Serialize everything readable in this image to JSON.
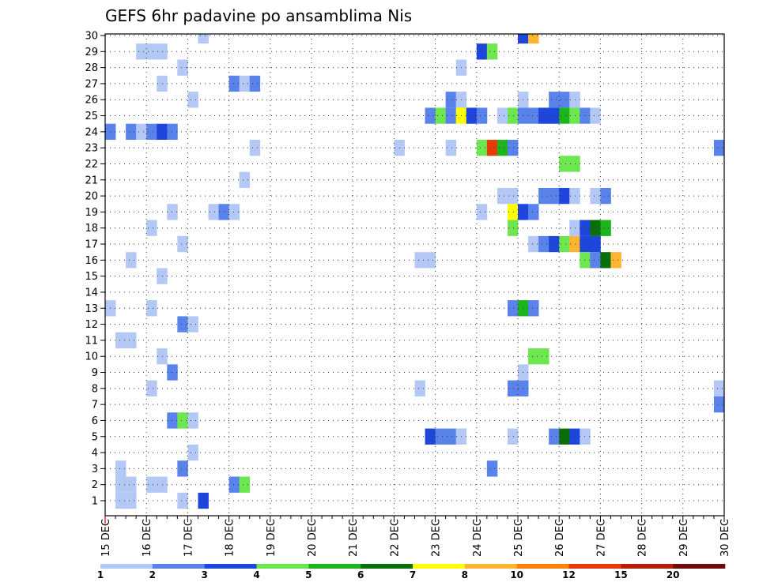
{
  "chart_data": {
    "type": "heatmap",
    "title": "GEFS 6hr padavine po ansamblima Nis",
    "xlabel": "",
    "ylabel": "",
    "x_tick_labels": [
      "15 DEC",
      "16 DEC",
      "17 DEC",
      "18 DEC",
      "19 DEC",
      "20 DEC",
      "21 DEC",
      "22 DEC",
      "23 DEC",
      "24 DEC",
      "25 DEC",
      "26 DEC",
      "27 DEC",
      "28 DEC",
      "29 DEC",
      "30 DEC"
    ],
    "y_tick_labels": [
      "1",
      "2",
      "3",
      "4",
      "5",
      "6",
      "7",
      "8",
      "9",
      "10",
      "11",
      "12",
      "13",
      "14",
      "15",
      "16",
      "17",
      "18",
      "19",
      "20",
      "21",
      "22",
      "23",
      "24",
      "25",
      "26",
      "27",
      "28",
      "29",
      "30"
    ],
    "y_range": [
      1,
      30
    ],
    "time_steps_per_day": 4,
    "grid": true,
    "colorbar": {
      "labels": [
        "1",
        "2",
        "3",
        "4",
        "5",
        "6",
        "7",
        "8",
        "10",
        "12",
        "15",
        "20"
      ],
      "colors": [
        "#b4c8f5",
        "#5a82eb",
        "#1e46dc",
        "#6ee650",
        "#1eb41e",
        "#0a6e0a",
        "#ffff00",
        "#ffb432",
        "#ff820a",
        "#e63c0a",
        "#b41e0a",
        "#6e0a0a"
      ]
    },
    "cells": [
      {
        "member": 30,
        "step": 10,
        "level": 1
      },
      {
        "member": 30,
        "step": 41,
        "level": 3
      },
      {
        "member": 30,
        "step": 42,
        "level": 8
      },
      {
        "member": 29,
        "step": 4,
        "level": 1
      },
      {
        "member": 29,
        "step": 5,
        "level": 1
      },
      {
        "member": 29,
        "step": 6,
        "level": 1
      },
      {
        "member": 29,
        "step": 37,
        "level": 3
      },
      {
        "member": 29,
        "step": 38,
        "level": 4
      },
      {
        "member": 28,
        "step": 8,
        "level": 1
      },
      {
        "member": 28,
        "step": 35,
        "level": 1
      },
      {
        "member": 27,
        "step": 6,
        "level": 1
      },
      {
        "member": 27,
        "step": 13,
        "level": 2
      },
      {
        "member": 27,
        "step": 14,
        "level": 1
      },
      {
        "member": 27,
        "step": 15,
        "level": 2
      },
      {
        "member": 26,
        "step": 9,
        "level": 1
      },
      {
        "member": 26,
        "step": 34,
        "level": 2
      },
      {
        "member": 26,
        "step": 35,
        "level": 1
      },
      {
        "member": 26,
        "step": 41,
        "level": 1
      },
      {
        "member": 26,
        "step": 44,
        "level": 2
      },
      {
        "member": 26,
        "step": 45,
        "level": 2
      },
      {
        "member": 26,
        "step": 46,
        "level": 1
      },
      {
        "member": 25,
        "step": 32,
        "level": 2
      },
      {
        "member": 25,
        "step": 33,
        "level": 4
      },
      {
        "member": 25,
        "step": 34,
        "level": 2
      },
      {
        "member": 25,
        "step": 35,
        "level": 7
      },
      {
        "member": 25,
        "step": 36,
        "level": 3
      },
      {
        "member": 25,
        "step": 37,
        "level": 2
      },
      {
        "member": 25,
        "step": 39,
        "level": 1
      },
      {
        "member": 25,
        "step": 40,
        "level": 4
      },
      {
        "member": 25,
        "step": 41,
        "level": 2
      },
      {
        "member": 25,
        "step": 42,
        "level": 2
      },
      {
        "member": 25,
        "step": 43,
        "level": 3
      },
      {
        "member": 25,
        "step": 44,
        "level": 3
      },
      {
        "member": 25,
        "step": 45,
        "level": 5
      },
      {
        "member": 25,
        "step": 46,
        "level": 4
      },
      {
        "member": 25,
        "step": 47,
        "level": 2
      },
      {
        "member": 25,
        "step": 48,
        "level": 1
      },
      {
        "member": 24,
        "step": 1,
        "level": 2
      },
      {
        "member": 24,
        "step": 3,
        "level": 2
      },
      {
        "member": 24,
        "step": 4,
        "level": 1
      },
      {
        "member": 24,
        "step": 5,
        "level": 2
      },
      {
        "member": 24,
        "step": 6,
        "level": 3
      },
      {
        "member": 24,
        "step": 7,
        "level": 2
      },
      {
        "member": 23,
        "step": 15,
        "level": 1
      },
      {
        "member": 23,
        "step": 29,
        "level": 1
      },
      {
        "member": 23,
        "step": 34,
        "level": 1
      },
      {
        "member": 23,
        "step": 37,
        "level": 4
      },
      {
        "member": 23,
        "step": 38,
        "level": 10
      },
      {
        "member": 23,
        "step": 39,
        "level": 5
      },
      {
        "member": 23,
        "step": 40,
        "level": 2
      },
      {
        "member": 23,
        "step": 60,
        "level": 2
      },
      {
        "member": 22,
        "step": 45,
        "level": 4
      },
      {
        "member": 22,
        "step": 46,
        "level": 4
      },
      {
        "member": 21,
        "step": 14,
        "level": 1
      },
      {
        "member": 20,
        "step": 39,
        "level": 1
      },
      {
        "member": 20,
        "step": 40,
        "level": 1
      },
      {
        "member": 20,
        "step": 43,
        "level": 2
      },
      {
        "member": 20,
        "step": 44,
        "level": 2
      },
      {
        "member": 20,
        "step": 45,
        "level": 3
      },
      {
        "member": 20,
        "step": 46,
        "level": 1
      },
      {
        "member": 20,
        "step": 48,
        "level": 1
      },
      {
        "member": 20,
        "step": 49,
        "level": 2
      },
      {
        "member": 19,
        "step": 7,
        "level": 1
      },
      {
        "member": 19,
        "step": 11,
        "level": 1
      },
      {
        "member": 19,
        "step": 12,
        "level": 2
      },
      {
        "member": 19,
        "step": 13,
        "level": 1
      },
      {
        "member": 19,
        "step": 37,
        "level": 1
      },
      {
        "member": 19,
        "step": 40,
        "level": 7
      },
      {
        "member": 19,
        "step": 41,
        "level": 3
      },
      {
        "member": 19,
        "step": 42,
        "level": 2
      },
      {
        "member": 18,
        "step": 5,
        "level": 1
      },
      {
        "member": 18,
        "step": 40,
        "level": 4
      },
      {
        "member": 18,
        "step": 46,
        "level": 1
      },
      {
        "member": 18,
        "step": 47,
        "level": 3
      },
      {
        "member": 18,
        "step": 48,
        "level": 6
      },
      {
        "member": 18,
        "step": 49,
        "level": 5
      },
      {
        "member": 17,
        "step": 8,
        "level": 1
      },
      {
        "member": 17,
        "step": 42,
        "level": 1
      },
      {
        "member": 17,
        "step": 43,
        "level": 2
      },
      {
        "member": 17,
        "step": 44,
        "level": 3
      },
      {
        "member": 17,
        "step": 45,
        "level": 4
      },
      {
        "member": 17,
        "step": 46,
        "level": 8
      },
      {
        "member": 17,
        "step": 47,
        "level": 3
      },
      {
        "member": 17,
        "step": 48,
        "level": 3
      },
      {
        "member": 16,
        "step": 3,
        "level": 1
      },
      {
        "member": 16,
        "step": 31,
        "level": 1
      },
      {
        "member": 16,
        "step": 32,
        "level": 1
      },
      {
        "member": 16,
        "step": 47,
        "level": 4
      },
      {
        "member": 16,
        "step": 48,
        "level": 2
      },
      {
        "member": 16,
        "step": 49,
        "level": 6
      },
      {
        "member": 16,
        "step": 50,
        "level": 8
      },
      {
        "member": 15,
        "step": 6,
        "level": 1
      },
      {
        "member": 13,
        "step": 1,
        "level": 1
      },
      {
        "member": 13,
        "step": 5,
        "level": 1
      },
      {
        "member": 13,
        "step": 40,
        "level": 2
      },
      {
        "member": 13,
        "step": 41,
        "level": 5
      },
      {
        "member": 13,
        "step": 42,
        "level": 2
      },
      {
        "member": 12,
        "step": 8,
        "level": 2
      },
      {
        "member": 12,
        "step": 9,
        "level": 1
      },
      {
        "member": 11,
        "step": 2,
        "level": 1
      },
      {
        "member": 11,
        "step": 3,
        "level": 1
      },
      {
        "member": 10,
        "step": 6,
        "level": 1
      },
      {
        "member": 10,
        "step": 42,
        "level": 4
      },
      {
        "member": 10,
        "step": 43,
        "level": 4
      },
      {
        "member": 9,
        "step": 7,
        "level": 2
      },
      {
        "member": 9,
        "step": 41,
        "level": 1
      },
      {
        "member": 8,
        "step": 5,
        "level": 1
      },
      {
        "member": 8,
        "step": 31,
        "level": 1
      },
      {
        "member": 8,
        "step": 40,
        "level": 2
      },
      {
        "member": 8,
        "step": 41,
        "level": 2
      },
      {
        "member": 8,
        "step": 60,
        "level": 1
      },
      {
        "member": 7,
        "step": 60,
        "level": 2
      },
      {
        "member": 6,
        "step": 7,
        "level": 2
      },
      {
        "member": 6,
        "step": 8,
        "level": 4
      },
      {
        "member": 6,
        "step": 9,
        "level": 1
      },
      {
        "member": 5,
        "step": 32,
        "level": 3
      },
      {
        "member": 5,
        "step": 33,
        "level": 2
      },
      {
        "member": 5,
        "step": 34,
        "level": 2
      },
      {
        "member": 5,
        "step": 35,
        "level": 1
      },
      {
        "member": 5,
        "step": 40,
        "level": 1
      },
      {
        "member": 5,
        "step": 44,
        "level": 2
      },
      {
        "member": 5,
        "step": 45,
        "level": 6
      },
      {
        "member": 5,
        "step": 46,
        "level": 3
      },
      {
        "member": 5,
        "step": 47,
        "level": 1
      },
      {
        "member": 4,
        "step": 9,
        "level": 1
      },
      {
        "member": 3,
        "step": 2,
        "level": 1
      },
      {
        "member": 3,
        "step": 8,
        "level": 2
      },
      {
        "member": 3,
        "step": 38,
        "level": 2
      },
      {
        "member": 2,
        "step": 2,
        "level": 1
      },
      {
        "member": 2,
        "step": 3,
        "level": 1
      },
      {
        "member": 2,
        "step": 5,
        "level": 1
      },
      {
        "member": 2,
        "step": 6,
        "level": 1
      },
      {
        "member": 2,
        "step": 13,
        "level": 2
      },
      {
        "member": 2,
        "step": 14,
        "level": 4
      },
      {
        "member": 1,
        "step": 2,
        "level": 1
      },
      {
        "member": 1,
        "step": 3,
        "level": 1
      },
      {
        "member": 1,
        "step": 8,
        "level": 1
      },
      {
        "member": 1,
        "step": 10,
        "level": 3
      }
    ]
  }
}
